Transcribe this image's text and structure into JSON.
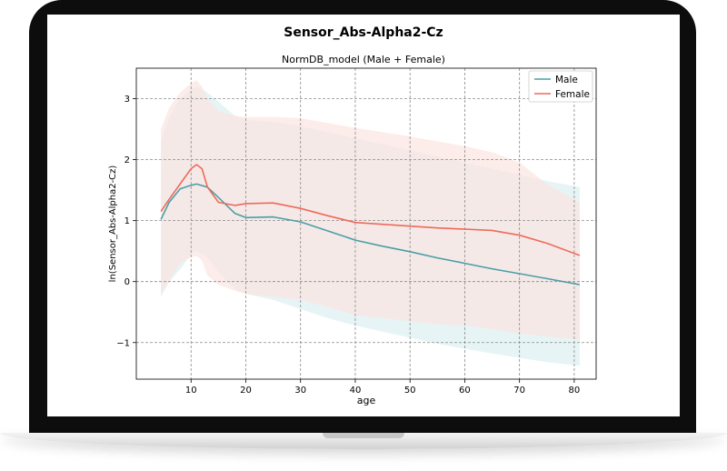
{
  "figure": {
    "suptitle": "Sensor_Abs-Alpha2-Cz"
  },
  "chart_data": {
    "type": "line",
    "title": "NormDB_model (Male + Female)",
    "xlabel": "age",
    "ylabel": "ln(Sensor_Abs-Alpha2-Cz)",
    "xlim": [
      0,
      84
    ],
    "ylim": [
      -1.6,
      3.5
    ],
    "xticks": [
      10,
      20,
      30,
      40,
      50,
      60,
      70,
      80
    ],
    "yticks": [
      -1,
      0,
      1,
      2,
      3
    ],
    "grid": true,
    "legend_position": "top-right",
    "series": [
      {
        "name": "Male",
        "color": "#4a9fa5",
        "band_color": "#dbeff1",
        "x": [
          4.5,
          6,
          8,
          10,
          11,
          13,
          15,
          18,
          20,
          25,
          30,
          35,
          40,
          45,
          50,
          55,
          60,
          65,
          70,
          75,
          81
        ],
        "y": [
          1.02,
          1.3,
          1.52,
          1.58,
          1.6,
          1.55,
          1.38,
          1.12,
          1.05,
          1.06,
          0.98,
          0.83,
          0.68,
          0.58,
          0.49,
          0.39,
          0.3,
          0.21,
          0.13,
          0.05,
          -0.05
        ],
        "upper": [
          2.3,
          2.7,
          3.0,
          3.15,
          3.2,
          3.1,
          2.95,
          2.72,
          2.65,
          2.62,
          2.55,
          2.45,
          2.35,
          2.25,
          2.15,
          2.05,
          1.95,
          1.85,
          1.75,
          1.65,
          1.55
        ],
        "lower": [
          -0.25,
          0.0,
          0.2,
          0.45,
          0.5,
          0.4,
          0.15,
          -0.12,
          -0.2,
          -0.3,
          -0.45,
          -0.6,
          -0.72,
          -0.82,
          -0.92,
          -1.02,
          -1.1,
          -1.18,
          -1.25,
          -1.32,
          -1.38
        ]
      },
      {
        "name": "Female",
        "color": "#ee6a5b",
        "band_color": "#fbe4e1",
        "x": [
          4.5,
          6,
          8,
          10,
          11,
          12,
          13,
          15,
          18,
          20,
          25,
          30,
          35,
          40,
          45,
          50,
          55,
          60,
          65,
          70,
          75,
          81
        ],
        "y": [
          1.15,
          1.35,
          1.6,
          1.85,
          1.92,
          1.85,
          1.55,
          1.3,
          1.25,
          1.28,
          1.29,
          1.2,
          1.08,
          0.97,
          0.94,
          0.91,
          0.88,
          0.86,
          0.84,
          0.76,
          0.63,
          0.43
        ],
        "upper": [
          2.5,
          2.85,
          3.1,
          3.25,
          3.3,
          3.2,
          3.0,
          2.8,
          2.72,
          2.7,
          2.7,
          2.68,
          2.6,
          2.52,
          2.45,
          2.38,
          2.3,
          2.22,
          2.12,
          1.95,
          1.6,
          1.3
        ],
        "lower": [
          -0.2,
          0.0,
          0.3,
          0.4,
          0.42,
          0.35,
          0.1,
          -0.05,
          -0.15,
          -0.2,
          -0.25,
          -0.3,
          -0.42,
          -0.55,
          -0.6,
          -0.65,
          -0.7,
          -0.72,
          -0.78,
          -0.85,
          -0.9,
          -0.95
        ]
      }
    ]
  }
}
